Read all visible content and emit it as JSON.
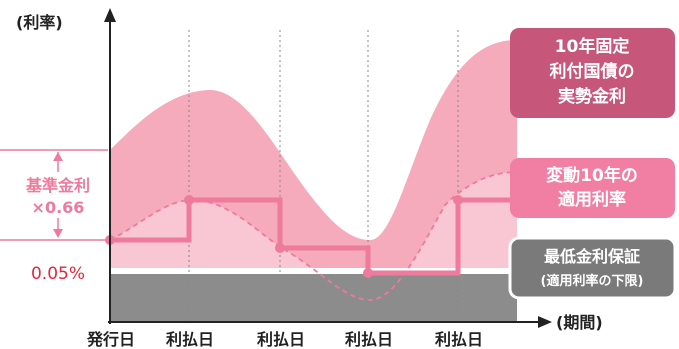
{
  "axes": {
    "y_label": "(利率)",
    "x_label": "(期間)"
  },
  "x_ticks": [
    "発行日",
    "利払日",
    "利払日",
    "利払日",
    "利払日"
  ],
  "left_annotation": {
    "kijun_line1": "基準金利",
    "kijun_line2": "×0.66",
    "minimum": "0.05%"
  },
  "callouts": {
    "fixed": {
      "line1": "10年固定",
      "line2": "利付国債の",
      "line3": "実勢金利"
    },
    "floating": {
      "line1": "変動10年の",
      "line2": "適用利率"
    },
    "floor": {
      "line1": "最低金利保証",
      "line2": "(適用利率の下限)"
    }
  },
  "colors": {
    "fixed_fill": "#f4a6b8",
    "floating_fill": "#f9c6d3",
    "floor_band": "#8c8c8c",
    "step_line": "#ee7a9c",
    "callout_fixed": "#c6577a",
    "callout_floating": "#f07fa3",
    "callout_floor": "#7a7a7a",
    "accent_red": "#e8253d"
  }
}
